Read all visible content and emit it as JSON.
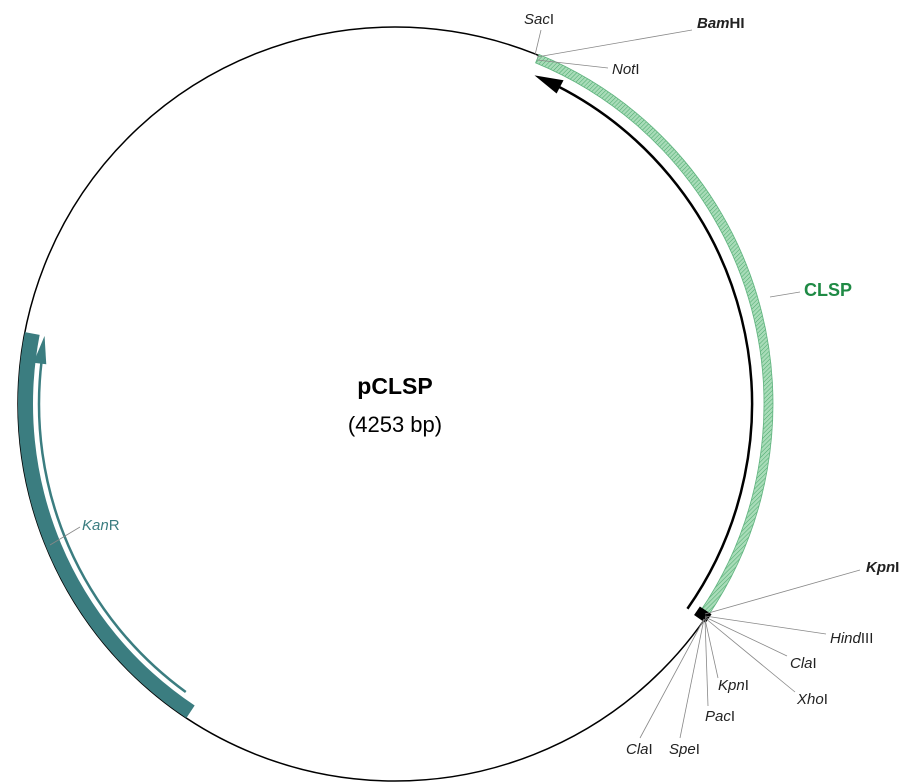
{
  "plasmid": {
    "name": "pCLSP",
    "size": "(4253 bp)"
  },
  "features": [
    {
      "label": "CLSP",
      "color": "#1f8a45"
    },
    {
      "italic": "Kan",
      "roman": "R",
      "color": "#3b7d80"
    }
  ],
  "sites": [
    {
      "italic": "Sac",
      "roman": "I",
      "bold": false
    },
    {
      "italic": "Bam",
      "roman": "HI",
      "bold": true
    },
    {
      "italic": "Not",
      "roman": "I",
      "bold": false
    },
    {
      "italic": "Kpn",
      "roman": "I",
      "bold": true
    },
    {
      "italic": "Hind",
      "roman": "III",
      "bold": false
    },
    {
      "italic": "Cla",
      "roman": "I",
      "bold": false
    },
    {
      "italic": "Xho",
      "roman": "I",
      "bold": false
    },
    {
      "italic": "Kpn",
      "roman": "I",
      "bold": false
    },
    {
      "italic": "Pac",
      "roman": "I",
      "bold": false
    },
    {
      "italic": "Spe",
      "roman": "I",
      "bold": false
    },
    {
      "italic": "Cla",
      "roman": "I",
      "bold": false
    }
  ]
}
